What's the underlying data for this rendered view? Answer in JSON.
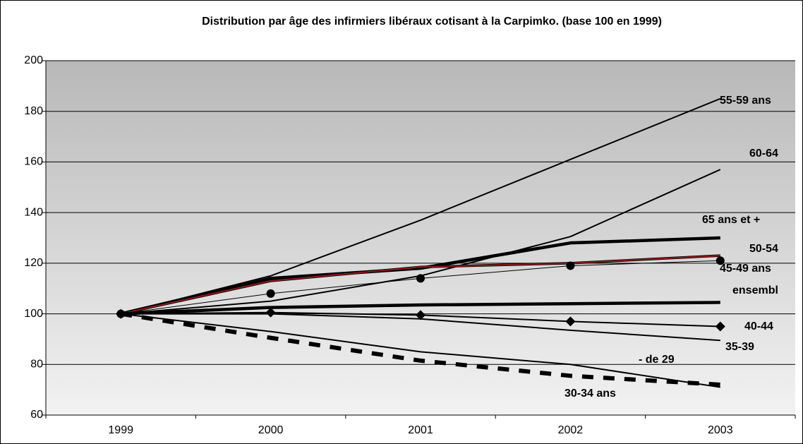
{
  "chart_data": {
    "type": "line",
    "title": "Distribution par âge des infirmiers libéraux cotisant à la Carpimko. (base 100 en 1999)",
    "categories": [
      "1999",
      "2000",
      "2001",
      "2002",
      "2003"
    ],
    "ylim": [
      60,
      200
    ],
    "yticks": [
      60,
      80,
      100,
      120,
      140,
      160,
      180,
      200
    ],
    "grid": true,
    "series": [
      {
        "name": "55-59 ans",
        "color": "#000000",
        "width": "thin",
        "values": [
          100,
          115,
          137,
          161,
          185
        ]
      },
      {
        "name": "60-64",
        "color": "#000000",
        "width": "thin",
        "values": [
          100,
          105,
          115,
          130.5,
          157
        ]
      },
      {
        "name": "65 ans et +",
        "color": "#000000",
        "width": "thick",
        "values": [
          100,
          114,
          118,
          128,
          130
        ]
      },
      {
        "name": "50-54",
        "color": "#8b1a1a",
        "width": "thin",
        "values": [
          100,
          113,
          118.5,
          120,
          123
        ]
      },
      {
        "name": "45-49 ans",
        "color": "#000000",
        "width": "hairline",
        "marker": "circle",
        "values": [
          100,
          108,
          114,
          119,
          121
        ]
      },
      {
        "name": "ensembl",
        "color": "#000000",
        "width": "thick",
        "values": [
          100,
          102.5,
          103.5,
          104,
          104.5
        ]
      },
      {
        "name": "40-44",
        "color": "#000000",
        "width": "thin",
        "marker": "diamond",
        "values": [
          100,
          100.5,
          99.5,
          97,
          95
        ]
      },
      {
        "name": "35-39",
        "color": "#000000",
        "width": "thin",
        "values": [
          100,
          100,
          98,
          93.5,
          89.5
        ]
      },
      {
        "name": "- de 29",
        "color": "#000000",
        "width": "thin",
        "values": [
          100,
          93,
          85,
          80,
          71
        ]
      },
      {
        "name": "30-34 ans",
        "color": "#000000",
        "width": "dashed",
        "values": [
          100,
          90.5,
          81.5,
          75.5,
          72
        ]
      }
    ]
  }
}
